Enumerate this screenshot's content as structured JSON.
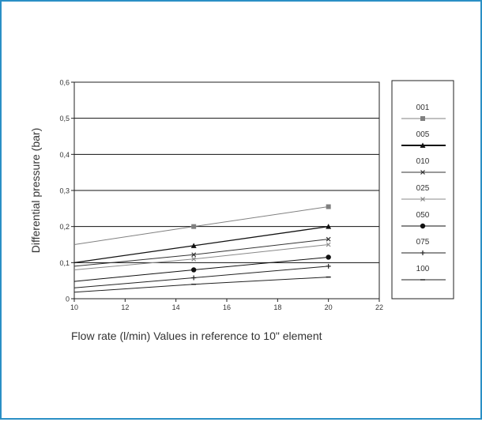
{
  "colors": {
    "page_border": "#2a8fc5",
    "axis": "#222222",
    "grid": "#111111",
    "series_001": "#808080",
    "series_005": "#111111",
    "series_010": "#333333",
    "series_025": "#888888",
    "series_050": "#111111",
    "series_075": "#222222",
    "series_100": "#222222"
  },
  "chart_data": {
    "type": "line",
    "title": "",
    "xlabel": "Flow rate (l/min) Values in reference to 10\" element",
    "ylabel": "Differential pressure (bar)",
    "xlim": [
      10,
      22
    ],
    "ylim": [
      0,
      0.6
    ],
    "xticks": [
      10,
      12,
      14,
      16,
      18,
      20,
      22
    ],
    "xtick_labels": [
      "10",
      "12",
      "14",
      "16",
      "18",
      "20",
      "22"
    ],
    "yticks": [
      0,
      0.1,
      0.2,
      0.3,
      0.4,
      0.5,
      0.6
    ],
    "ytick_labels": [
      "0",
      "0,1",
      "0,2",
      "0,3",
      "0,4",
      "0,5",
      "0,6"
    ],
    "grid": "horizontal",
    "legend_position": "right",
    "x": [
      10,
      14.7,
      20
    ],
    "series": [
      {
        "name": "001",
        "values": [
          0.15,
          0.2,
          0.255
        ],
        "marker": "square",
        "color": "#808080"
      },
      {
        "name": "005",
        "values": [
          0.1,
          0.147,
          0.2
        ],
        "marker": "triangle",
        "color": "#111111"
      },
      {
        "name": "010",
        "values": [
          0.09,
          0.122,
          0.165
        ],
        "marker": "x",
        "color": "#333333"
      },
      {
        "name": "025",
        "values": [
          0.08,
          0.11,
          0.15
        ],
        "marker": "x",
        "color": "#888888"
      },
      {
        "name": "050",
        "values": [
          0.048,
          0.08,
          0.115
        ],
        "marker": "circle",
        "color": "#111111"
      },
      {
        "name": "075",
        "values": [
          0.03,
          0.058,
          0.09
        ],
        "marker": "plus",
        "color": "#222222"
      },
      {
        "name": "100",
        "values": [
          0.018,
          0.04,
          0.06
        ],
        "marker": "dash",
        "color": "#222222"
      }
    ]
  }
}
